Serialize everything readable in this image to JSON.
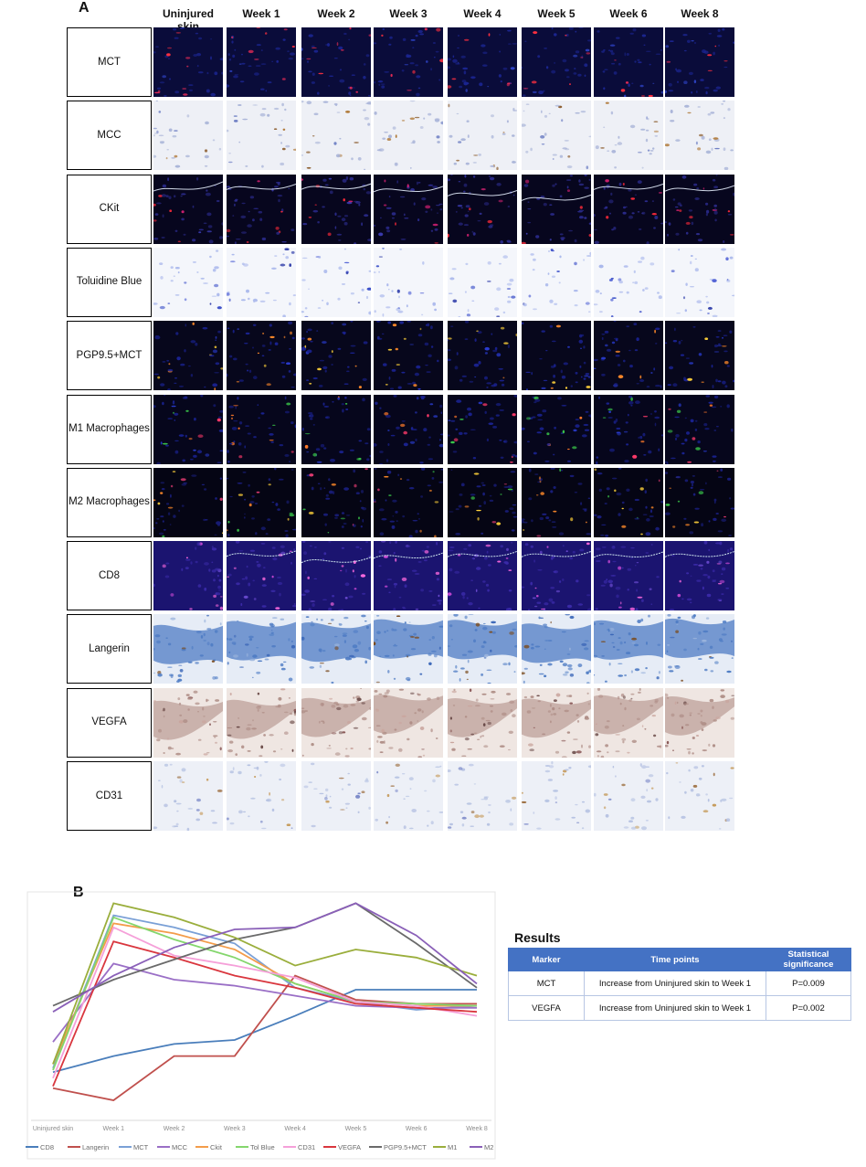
{
  "panel_a": {
    "label": "A",
    "columns": [
      "Uninjured skin",
      "Week 1",
      "Week 2",
      "Week 3",
      "Week 4",
      "Week 5",
      "Week 6",
      "Week 8"
    ],
    "rows": [
      {
        "label": "MCT",
        "stain": "fluor-red"
      },
      {
        "label": "MCC",
        "stain": "brightfield-brown"
      },
      {
        "label": "CKit",
        "stain": "fluor-red-line"
      },
      {
        "label": "Toluidine Blue",
        "stain": "toluidine"
      },
      {
        "label": "PGP9.5+MCT",
        "stain": "fluor-yellow"
      },
      {
        "label": "M1 Macrophages",
        "stain": "fluor-multi"
      },
      {
        "label": "M2 Macrophages",
        "stain": "fluor-multi2"
      },
      {
        "label": "CD8",
        "stain": "fluor-purple"
      },
      {
        "label": "Langerin",
        "stain": "langerin"
      },
      {
        "label": "VEGFA",
        "stain": "vegfa"
      },
      {
        "label": "CD31",
        "stain": "cd31"
      }
    ]
  },
  "panel_b": {
    "label": "B"
  },
  "results": {
    "title": "Results",
    "headers": [
      "Marker",
      "Time points",
      "Statistical significance"
    ],
    "rows": [
      [
        "MCT",
        "Increase from Uninjured skin to Week 1",
        "P=0.009"
      ],
      [
        "VEGFA",
        "Increase from Uninjured skin to Week 1",
        "P=0.002"
      ]
    ]
  },
  "chart_data": {
    "type": "line",
    "categories": [
      "Uninjured skin",
      "Week 1",
      "Week 2",
      "Week 3",
      "Week 4",
      "Week 5",
      "Week 6",
      "Week 8"
    ],
    "ylim": [
      0,
      100
    ],
    "series": [
      {
        "name": "CD8",
        "color": "#4a7ebb",
        "values": [
          14,
          22,
          28,
          30,
          42,
          55,
          55,
          55
        ]
      },
      {
        "name": "Langerin",
        "color": "#c0504d",
        "values": [
          6,
          0,
          22,
          22,
          62,
          50,
          48,
          48
        ]
      },
      {
        "name": "MCT",
        "color": "#7aa0d6",
        "values": [
          16,
          92,
          86,
          78,
          56,
          49,
          45,
          47
        ]
      },
      {
        "name": "MCC",
        "color": "#9a6fc6",
        "values": [
          29,
          68,
          60,
          57,
          52,
          47,
          46,
          46
        ]
      },
      {
        "name": "Ckit",
        "color": "#f39c4a",
        "values": [
          18,
          88,
          83,
          75,
          58,
          49,
          47,
          47
        ]
      },
      {
        "name": "Tol Blue",
        "color": "#84d66d",
        "values": [
          15,
          91,
          80,
          71,
          58,
          49,
          48,
          47
        ]
      },
      {
        "name": "CD31",
        "color": "#f5a0d9",
        "values": [
          11,
          86,
          72,
          67,
          61,
          49,
          47,
          42
        ]
      },
      {
        "name": "VEGFA",
        "color": "#d9363e",
        "values": [
          7,
          79,
          71,
          62,
          56,
          48,
          46,
          44
        ]
      },
      {
        "name": "PGP9.5+MCT",
        "color": "#6a6a6a",
        "values": [
          47,
          60,
          70,
          80,
          86,
          98,
          78,
          56
        ]
      },
      {
        "name": "M1",
        "color": "#9aae3c",
        "values": [
          18,
          98,
          91,
          81,
          67,
          75,
          71,
          62
        ]
      },
      {
        "name": "M2",
        "color": "#8a60b8",
        "values": [
          44,
          62,
          76,
          85,
          86,
          98,
          82,
          58
        ]
      }
    ]
  },
  "colors": {
    "table_header": "#4472c4",
    "table_border": "#b7c6e3"
  }
}
